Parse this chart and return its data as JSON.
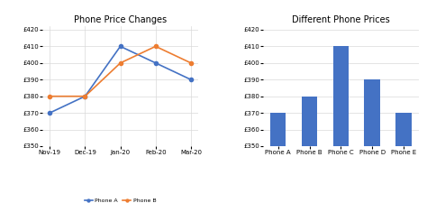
{
  "line_x": [
    "Nov-19",
    "Dec-19",
    "Jan-20",
    "Feb-20",
    "Mar-20"
  ],
  "phone_a": [
    370,
    380,
    410,
    400,
    390
  ],
  "phone_b": [
    380,
    380,
    400,
    410,
    400
  ],
  "line_title": "Phone Price Changes",
  "line_color_a": "#4472c4",
  "line_color_b": "#ed7d31",
  "line_ylim": [
    350,
    422
  ],
  "line_yticks": [
    350,
    360,
    370,
    380,
    390,
    400,
    410,
    420
  ],
  "bar_categories": [
    "Phone A",
    "Phone B",
    "Phone C",
    "Phone D",
    "Phone E"
  ],
  "bar_values": [
    370,
    380,
    410,
    390,
    370
  ],
  "bar_color": "#4472c4",
  "bar_title": "Different Phone Prices",
  "bar_ylim": [
    350,
    422
  ],
  "bar_yticks": [
    350,
    360,
    370,
    380,
    390,
    400,
    410,
    420
  ],
  "bar_bottom": 350,
  "background_color": "#ffffff",
  "grid_color": "#d9d9d9"
}
